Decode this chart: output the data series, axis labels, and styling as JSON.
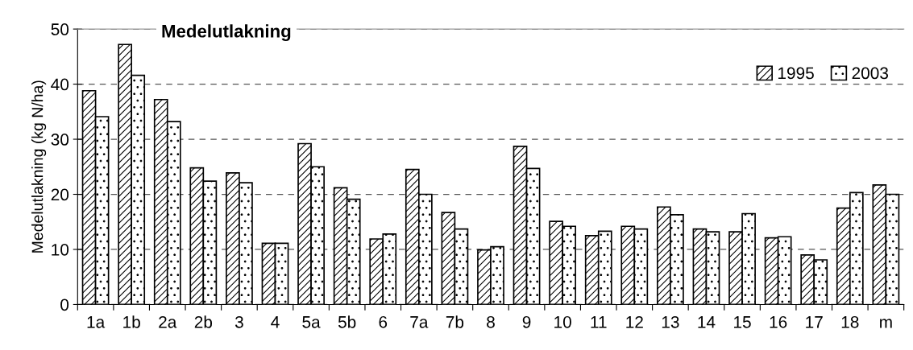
{
  "chart_data": {
    "type": "bar",
    "title": "Medelutlakning",
    "ylabel": "Medelutlakning (kg N/ha)",
    "categories": [
      "1a",
      "1b",
      "2a",
      "2b",
      "3",
      "4",
      "5a",
      "5b",
      "6",
      "7a",
      "7b",
      "8",
      "9",
      "10",
      "11",
      "12",
      "13",
      "14",
      "15",
      "16",
      "17",
      "18",
      "m"
    ],
    "series": [
      {
        "name": "1995",
        "color": "#000000",
        "values": [
          38.8,
          47.2,
          37.2,
          24.8,
          23.9,
          11.1,
          29.2,
          21.2,
          11.9,
          24.5,
          16.7,
          9.9,
          28.7,
          15.1,
          12.5,
          14.2,
          17.7,
          13.7,
          13.2,
          12.1,
          9.0,
          17.5,
          21.7
        ]
      },
      {
        "name": "2003",
        "color": "#000000",
        "values": [
          34.1,
          41.6,
          33.2,
          22.4,
          22.1,
          11.1,
          25.0,
          19.1,
          12.8,
          20.0,
          13.7,
          10.5,
          24.7,
          14.2,
          13.3,
          13.7,
          16.3,
          13.2,
          16.5,
          12.3,
          8.1,
          20.3,
          20.0
        ]
      }
    ],
    "ylim": [
      0,
      50
    ],
    "yticks": [
      0,
      10,
      20,
      30,
      40,
      50
    ],
    "grid": "y",
    "legend": "top right"
  }
}
